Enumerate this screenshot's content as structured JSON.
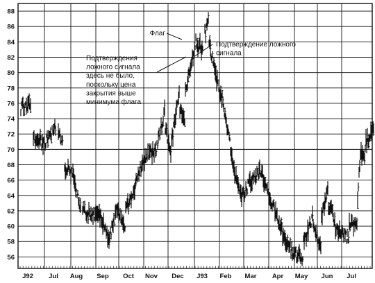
{
  "chart_data": {
    "type": "bar",
    "subtype": "ohlc-price-bars",
    "grid": true,
    "ylim": [
      54.5,
      89
    ],
    "y_ticks": [
      56,
      58,
      60,
      62,
      64,
      66,
      68,
      70,
      72,
      74,
      76,
      78,
      80,
      82,
      84,
      86,
      88
    ],
    "x_ticks": [
      "J92",
      "Jul",
      "Aug",
      "Sep",
      "Oct",
      "Nov",
      "Dec",
      "J93",
      "Feb",
      "Mar",
      "Apr",
      "May",
      "Jun",
      "Jul"
    ],
    "segments": [
      {
        "from": 0,
        "to": 14,
        "y0": 75.5,
        "y1": 76.0
      },
      {
        "from": 15,
        "to": 34,
        "y0": 72.0,
        "y1": 70.5
      },
      {
        "from": 35,
        "to": 50,
        "y0": 71.0,
        "y1": 72.8
      },
      {
        "from": 51,
        "to": 60,
        "y0": 72.5,
        "y1": 71.0
      },
      {
        "from": 61,
        "to": 76,
        "y0": 68.0,
        "y1": 66.5
      },
      {
        "from": 77,
        "to": 86,
        "y0": 65.5,
        "y1": 62.5
      },
      {
        "from": 87,
        "to": 116,
        "y0": 62.0,
        "y1": 61.0
      },
      {
        "from": 117,
        "to": 128,
        "y0": 60.5,
        "y1": 58.2
      },
      {
        "from": 129,
        "to": 140,
        "y0": 59.0,
        "y1": 62.5
      },
      {
        "from": 141,
        "to": 150,
        "y0": 62.0,
        "y1": 59.2
      },
      {
        "from": 151,
        "to": 166,
        "y0": 62.0,
        "y1": 65.5
      },
      {
        "from": 167,
        "to": 182,
        "y0": 66.5,
        "y1": 69.5
      },
      {
        "from": 183,
        "to": 194,
        "y0": 69.5,
        "y1": 69.8
      },
      {
        "from": 195,
        "to": 207,
        "y0": 70.0,
        "y1": 74.8
      },
      {
        "from": 208,
        "to": 216,
        "y0": 73.0,
        "y1": 69.5
      },
      {
        "from": 217,
        "to": 228,
        "y0": 71.0,
        "y1": 77.0
      },
      {
        "from": 229,
        "to": 236,
        "y0": 75.0,
        "y1": 74.0
      },
      {
        "from": 237,
        "to": 252,
        "y0": 77.5,
        "y1": 84.0
      },
      {
        "from": 253,
        "to": 262,
        "y0": 84.0,
        "y1": 83.0
      },
      {
        "from": 263,
        "to": 270,
        "y0": 84.5,
        "y1": 86.5
      },
      {
        "from": 271,
        "to": 278,
        "y0": 84.0,
        "y1": 81.0
      },
      {
        "from": 279,
        "to": 292,
        "y0": 80.0,
        "y1": 76.0
      },
      {
        "from": 293,
        "to": 306,
        "y0": 75.0,
        "y1": 68.0
      },
      {
        "from": 307,
        "to": 318,
        "y0": 67.0,
        "y1": 64.0
      },
      {
        "from": 319,
        "to": 336,
        "y0": 64.0,
        "y1": 66.5
      },
      {
        "from": 337,
        "to": 348,
        "y0": 66.5,
        "y1": 67.5
      },
      {
        "from": 349,
        "to": 366,
        "y0": 66.0,
        "y1": 62.0
      },
      {
        "from": 367,
        "to": 376,
        "y0": 62.0,
        "y1": 59.5
      },
      {
        "from": 377,
        "to": 392,
        "y0": 59.0,
        "y1": 56.5
      },
      {
        "from": 393,
        "to": 406,
        "y0": 56.5,
        "y1": 55.8
      },
      {
        "from": 407,
        "to": 420,
        "y0": 58.0,
        "y1": 61.0
      },
      {
        "from": 421,
        "to": 432,
        "y0": 60.0,
        "y1": 57.5
      },
      {
        "from": 433,
        "to": 442,
        "y0": 61.0,
        "y1": 64.5
      },
      {
        "from": 443,
        "to": 452,
        "y0": 63.0,
        "y1": 60.5
      },
      {
        "from": 453,
        "to": 472,
        "y0": 59.5,
        "y1": 58.5
      },
      {
        "from": 473,
        "to": 484,
        "y0": 60.5,
        "y1": 60.0
      },
      {
        "from": 485,
        "to": 490,
        "y0": 64.0,
        "y1": 70.5
      },
      {
        "from": 491,
        "to": 496,
        "y0": 69.0,
        "y1": 69.5
      },
      {
        "from": 497,
        "to": 508,
        "y0": 71.0,
        "y1": 72.5
      }
    ],
    "annotations": [
      {
        "text": [
          "Флаг"
        ]
      },
      {
        "text": [
          "Подтверждение ложного",
          "сигнала"
        ]
      },
      {
        "text": [
          "Подтверждения",
          "ложного сигнала",
          "здесь не было,",
          "поскольку цена",
          "закрытия выше",
          "минимума флага"
        ]
      }
    ]
  }
}
